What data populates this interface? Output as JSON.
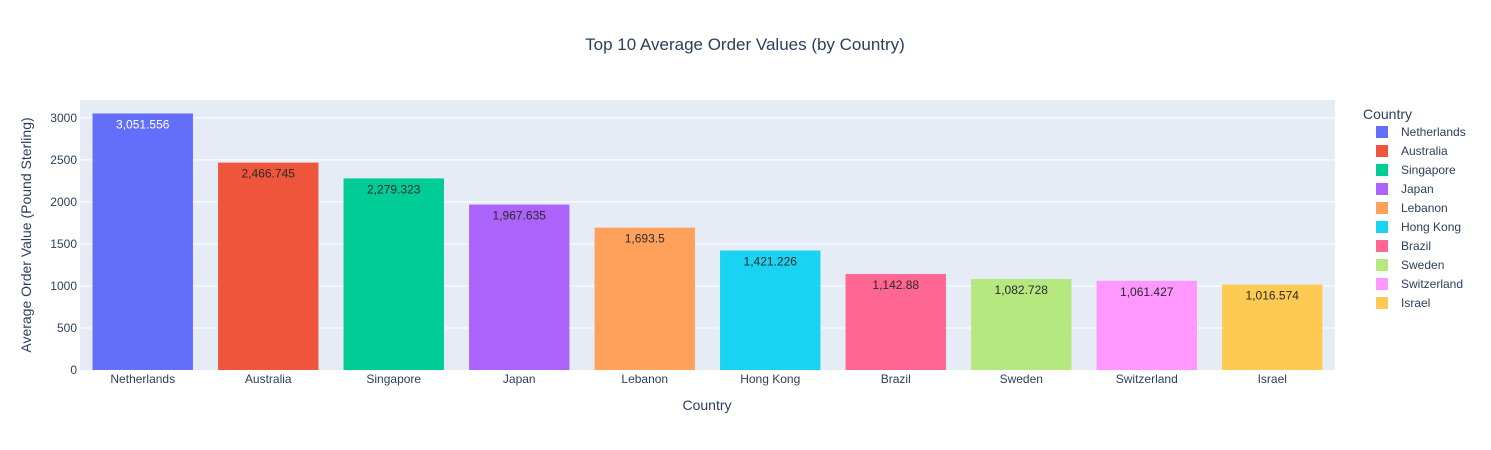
{
  "chart_data": {
    "type": "bar",
    "title": "Top 10 Average Order Values (by Country)",
    "xlabel": "Country",
    "ylabel": "Average Order Value (Pound Sterling)",
    "ylim": [
      0,
      3212.16
    ],
    "yticks": [
      0,
      500,
      1000,
      1500,
      2000,
      2500,
      3000
    ],
    "grid": true,
    "legend": {
      "title": "Country",
      "placement": "right"
    },
    "categories": [
      "Netherlands",
      "Australia",
      "Singapore",
      "Japan",
      "Lebanon",
      "Hong Kong",
      "Brazil",
      "Sweden",
      "Switzerland",
      "Israel"
    ],
    "values": [
      3051.556,
      2466.745,
      2279.323,
      1967.635,
      1693.5,
      1421.226,
      1142.88,
      1082.728,
      1061.427,
      1016.574
    ],
    "value_labels": [
      "3,051.556",
      "2,466.745",
      "2,279.323",
      "1,967.635",
      "1,693.5",
      "1,421.226",
      "1,142.88",
      "1,082.728",
      "1,061.427",
      "1,016.574"
    ],
    "series": [
      {
        "name": "Netherlands",
        "color": "#636efa"
      },
      {
        "name": "Australia",
        "color": "#EF553B"
      },
      {
        "name": "Singapore",
        "color": "#00cc96"
      },
      {
        "name": "Japan",
        "color": "#ab63fa"
      },
      {
        "name": "Lebanon",
        "color": "#FFA15A"
      },
      {
        "name": "Hong Kong",
        "color": "#19d3f3"
      },
      {
        "name": "Brazil",
        "color": "#FF6692"
      },
      {
        "name": "Sweden",
        "color": "#B6E880"
      },
      {
        "name": "Switzerland",
        "color": "#FF97FF"
      },
      {
        "name": "Israel",
        "color": "#FECB52"
      }
    ],
    "colors": {
      "plot_background": "#E5ECF6",
      "grid": "#ffffff",
      "text": "#2a3f5f"
    }
  }
}
